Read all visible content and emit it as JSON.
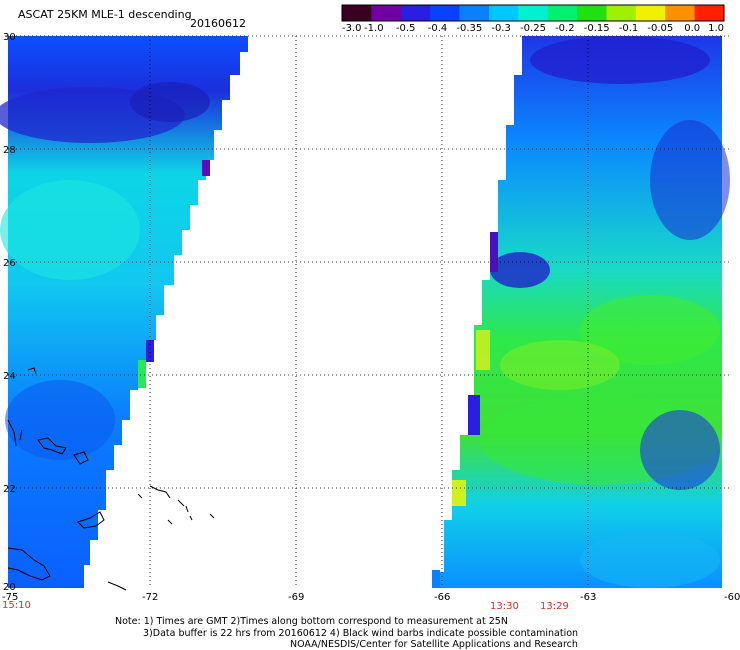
{
  "header": {
    "title": "ASCAT 25KM MLE-1 descending",
    "date": "20160612"
  },
  "colorbar": {
    "labels": [
      "-3.0",
      "-1.0",
      "-0.5",
      "-0.4",
      "-0.35",
      "-0.3",
      "-0.25",
      "-0.2",
      "-0.15",
      "-0.1",
      "-0.05",
      "0.0",
      "1.0"
    ],
    "colors": [
      "#3a0020",
      "#7000a0",
      "#2a1ee0",
      "#0a40ff",
      "#0a80ff",
      "#00c8ff",
      "#00f0d0",
      "#00f070",
      "#20e010",
      "#a0f000",
      "#f0f000",
      "#ff9000",
      "#ff2000"
    ]
  },
  "axes": {
    "lon": [
      -75,
      -72,
      -69,
      -66,
      -63,
      -60
    ],
    "lat": [
      30,
      28,
      26,
      24,
      22,
      20
    ]
  },
  "times": {
    "left": "15:10",
    "right_a": "13:30",
    "right_b": "13:29"
  },
  "notes": [
    "Note: 1) Times are GMT 2)Times along bottom correspond to measurement at 25N",
    "3)Data buffer is 22 hrs from 20160612 4) Black wind barbs indicate possible contamination",
    "NOAA/NESDIS/Center for Satellite Applications and Research"
  ]
}
